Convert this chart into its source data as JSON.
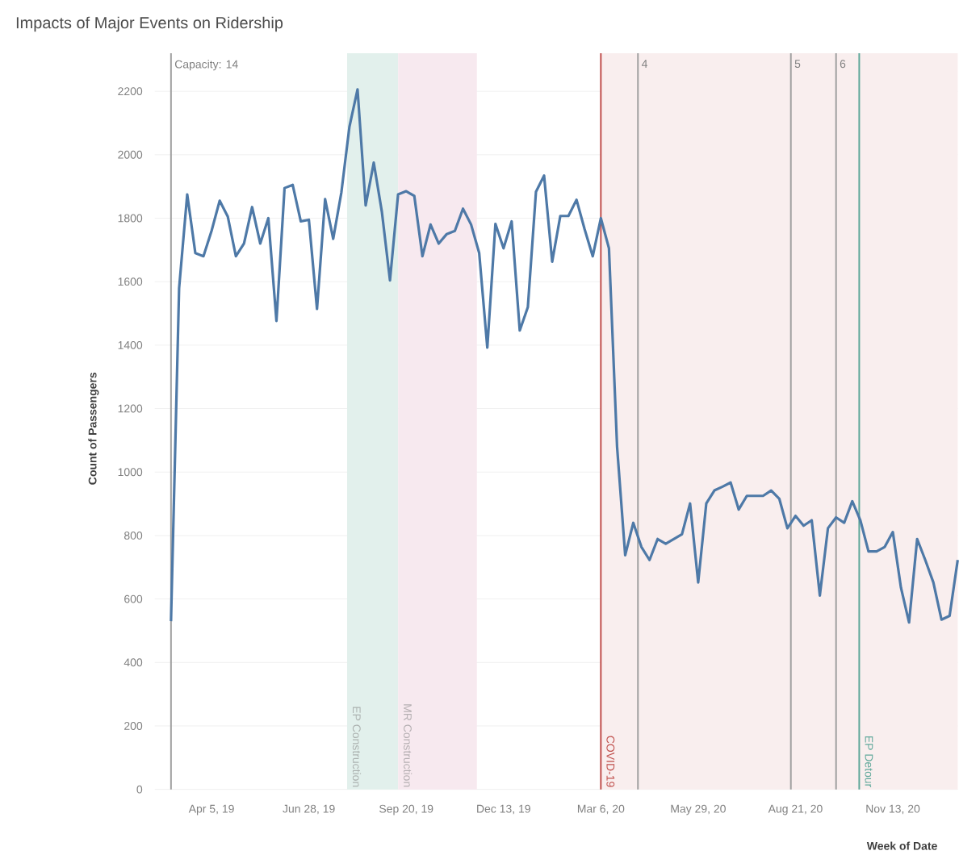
{
  "chart_data": {
    "type": "line",
    "title": "Impacts of Major Events on Ridership",
    "xlabel": "Week of Date",
    "ylabel": "Count of Passengers",
    "x": [
      "2019-03-01",
      "2019-03-08",
      "2019-03-15",
      "2019-03-22",
      "2019-03-29",
      "2019-04-05",
      "2019-04-12",
      "2019-04-19",
      "2019-04-26",
      "2019-05-03",
      "2019-05-10",
      "2019-05-17",
      "2019-05-24",
      "2019-05-31",
      "2019-06-07",
      "2019-06-14",
      "2019-06-21",
      "2019-06-28",
      "2019-07-05",
      "2019-07-12",
      "2019-07-19",
      "2019-07-26",
      "2019-08-02",
      "2019-08-09",
      "2019-08-16",
      "2019-08-23",
      "2019-08-30",
      "2019-09-06",
      "2019-09-13",
      "2019-09-20",
      "2019-09-27",
      "2019-10-04",
      "2019-10-11",
      "2019-10-18",
      "2019-10-25",
      "2019-11-01",
      "2019-11-08",
      "2019-11-15",
      "2019-11-22",
      "2019-11-29",
      "2019-12-06",
      "2019-12-13",
      "2019-12-20",
      "2019-12-27",
      "2020-01-03",
      "2020-01-10",
      "2020-01-17",
      "2020-01-24",
      "2020-01-31",
      "2020-02-07",
      "2020-02-14",
      "2020-02-21",
      "2020-02-28",
      "2020-03-06",
      "2020-03-13",
      "2020-03-20",
      "2020-03-27",
      "2020-04-03",
      "2020-04-10",
      "2020-04-17",
      "2020-04-24",
      "2020-05-01",
      "2020-05-08",
      "2020-05-15",
      "2020-05-22",
      "2020-05-29",
      "2020-06-05",
      "2020-06-12",
      "2020-06-19",
      "2020-06-26",
      "2020-07-03",
      "2020-07-10",
      "2020-07-17",
      "2020-07-24",
      "2020-07-31",
      "2020-08-07",
      "2020-08-14",
      "2020-08-21",
      "2020-08-28",
      "2020-09-04",
      "2020-09-11",
      "2020-09-18",
      "2020-09-25",
      "2020-10-02",
      "2020-10-09",
      "2020-10-16",
      "2020-10-23",
      "2020-10-30",
      "2020-11-06",
      "2020-11-13",
      "2020-11-20",
      "2020-11-27",
      "2020-12-04",
      "2020-12-11",
      "2020-12-18",
      "2020-12-25",
      "2021-01-01",
      "2021-01-08"
    ],
    "series": [
      {
        "color": "#4e79a7",
        "values": [
          530,
          1580,
          1875,
          1690,
          1680,
          1760,
          1855,
          1805,
          1680,
          1720,
          1835,
          1720,
          1800,
          1476,
          1895,
          1905,
          1790,
          1795,
          1514,
          1860,
          1735,
          1880,
          2088,
          2206,
          1840,
          1975,
          1820,
          1604,
          1875,
          1885,
          1870,
          1680,
          1780,
          1720,
          1750,
          1760,
          1830,
          1780,
          1690,
          1392,
          1782,
          1705,
          1790,
          1446,
          1520,
          1883,
          1934,
          1663,
          1807,
          1807,
          1858,
          1765,
          1680,
          1800,
          1705,
          1080,
          738,
          840,
          764,
          723,
          789,
          774,
          789,
          804,
          901,
          652,
          901,
          942,
          954,
          967,
          882,
          925,
          925,
          925,
          942,
          916,
          823,
          862,
          831,
          848,
          611,
          823,
          857,
          840,
          908,
          848,
          750,
          750,
          764,
          811,
          636,
          526,
          789,
          723,
          652,
          535,
          547,
          723
        ]
      }
    ],
    "xlim": [
      "2019-02-15",
      "2021-01-08"
    ],
    "xticks": [
      {
        "value": "2019-04-05",
        "label": "Apr 5, 19"
      },
      {
        "value": "2019-06-28",
        "label": "Jun 28, 19"
      },
      {
        "value": "2019-09-20",
        "label": "Sep 20, 19"
      },
      {
        "value": "2019-12-13",
        "label": "Dec 13, 19"
      },
      {
        "value": "2020-03-06",
        "label": "Mar 6, 20"
      },
      {
        "value": "2020-05-29",
        "label": "May 29, 20"
      },
      {
        "value": "2020-08-21",
        "label": "Aug 21, 20"
      },
      {
        "value": "2020-11-13",
        "label": "Nov 13, 20"
      }
    ],
    "ylim": [
      0,
      2320
    ],
    "yticks": [
      0,
      200,
      400,
      600,
      800,
      1000,
      1200,
      1400,
      1600,
      1800,
      2000,
      2200
    ],
    "bands": [
      {
        "axis": "x",
        "from": "2019-07-31",
        "to": "2019-09-13",
        "label": "EP Construction",
        "color": "#e2f0ec"
      },
      {
        "axis": "x",
        "from": "2019-09-13",
        "to": "2019-11-20",
        "label": "MR Construction",
        "color": "#f7e9ef"
      },
      {
        "axis": "x",
        "from": "2020-03-06",
        "to": "2021-01-08",
        "color": "#f9eeee"
      }
    ],
    "ref_lines": [
      {
        "axis": "x",
        "value": "2019-03-01",
        "label": "Capacity: 14",
        "color": "#a0a0a0"
      },
      {
        "axis": "x",
        "value": "2020-03-06",
        "label": "COVID-19",
        "color": "#c0504d"
      },
      {
        "axis": "x",
        "value": "2020-04-07",
        "label": "4",
        "color": "#a0a0a0"
      },
      {
        "axis": "x",
        "value": "2020-08-17",
        "label": "5",
        "color": "#a0a0a0"
      },
      {
        "axis": "x",
        "value": "2020-09-25",
        "label": "6",
        "color": "#a0a0a0"
      },
      {
        "axis": "x",
        "value": "2020-10-15",
        "label": "EP Detour",
        "color": "#5fa89a"
      }
    ],
    "grid": "y",
    "marker": "none",
    "line_style": "solid"
  }
}
